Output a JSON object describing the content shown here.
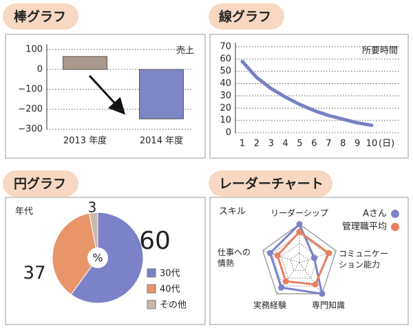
{
  "chart_data": [
    {
      "type": "bar",
      "title": "棒グラフ",
      "label": "売上",
      "categories": [
        "2013 年度",
        "2014 年度"
      ],
      "values": [
        65,
        -248
      ],
      "colors": [
        "#a89a8e",
        "#7f86c6"
      ],
      "ylim": [
        -300,
        100
      ],
      "yticks": [
        {
          "value": -300,
          "label": "−300"
        },
        {
          "value": -200,
          "label": "−200"
        },
        {
          "value": -100,
          "label": "−100"
        },
        0,
        100
      ],
      "grid": true
    },
    {
      "type": "line",
      "title": "線グラフ",
      "label": "所要時間",
      "xlabel": "(日)",
      "x": [
        1,
        2,
        3,
        4,
        5,
        6,
        7,
        8,
        9,
        10
      ],
      "values": [
        58,
        45,
        36,
        29,
        23,
        18,
        14,
        11,
        8,
        6
      ],
      "color": "#7a80c4",
      "xlim": [
        1,
        10
      ],
      "xticks": [
        1,
        2,
        3,
        4,
        5,
        6,
        7,
        8,
        9,
        10
      ],
      "ylim": [
        0,
        70
      ],
      "yticks": [
        0,
        10,
        20,
        30,
        40,
        50,
        60,
        70
      ],
      "grid": true
    },
    {
      "type": "pie",
      "title": "円グラフ",
      "label": "年代",
      "center_label": "%",
      "categories": [
        "30代",
        "40代",
        "その他"
      ],
      "values": [
        60,
        37,
        3
      ],
      "colors": [
        "#7b82c8",
        "#e8956a",
        "#c9b9a9"
      ]
    },
    {
      "type": "radar",
      "title": "レーダーチャート",
      "label": "スキル",
      "categories": [
        "リーダーシップ",
        "コミュニケー\nション能力",
        "専門知識",
        "実務経験",
        "仕事への\n情熱"
      ],
      "rlim": [
        0,
        5
      ],
      "series": [
        {
          "name": "Aさん",
          "color": "#7b82c8",
          "values": [
            5,
            2,
            5,
            4,
            4
          ]
        },
        {
          "name": "管理職平均",
          "color": "#e87f5e",
          "values": [
            4,
            4,
            3.5,
            3,
            3
          ]
        }
      ]
    }
  ]
}
